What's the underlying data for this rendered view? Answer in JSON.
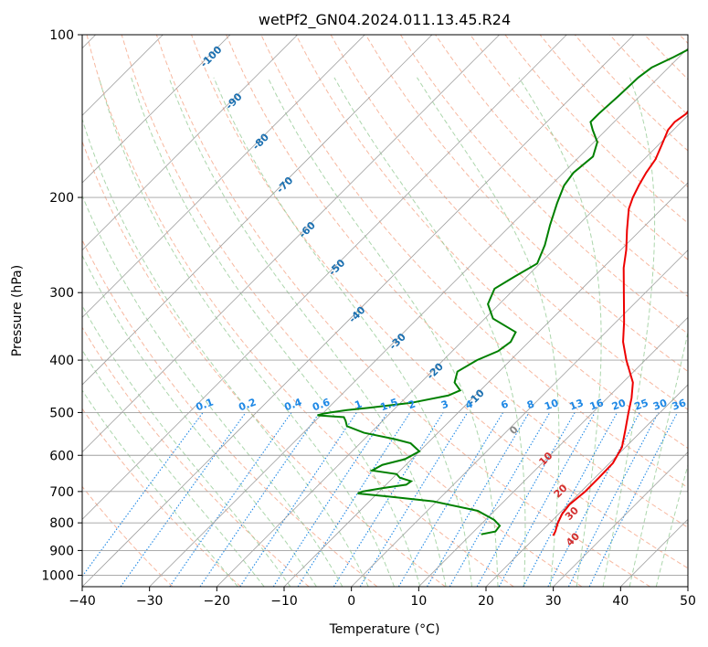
{
  "chart_data": {
    "type": "line",
    "title": "wetPf2_GN04.2024.011.13.45.R24",
    "xlabel": "Temperature (°C)",
    "ylabel": "Pressure (hPa)",
    "xlim": [
      -40,
      50
    ],
    "ylim": [
      1050,
      100
    ],
    "y_scale": "log",
    "x_ticks": [
      "−40",
      "−30",
      "−20",
      "−10",
      "0",
      "10",
      "20",
      "30",
      "40",
      "50"
    ],
    "y_ticks": [
      "100",
      "200",
      "300",
      "400",
      "500",
      "600",
      "700",
      "800",
      "900",
      "1000"
    ],
    "grid": true,
    "skew": "skew-T log-p",
    "series": [
      {
        "color": "#ee0000",
        "pressure": [
          845,
          830,
          800,
          770,
          740,
          700,
          660,
          620,
          580,
          540,
          500,
          470,
          440,
          400,
          370,
          340,
          300,
          270,
          250,
          230,
          210,
          200,
          190,
          180,
          170,
          160,
          150,
          145,
          140,
          130,
          120,
          110,
          100
        ],
        "values": [
          22.4,
          22.1,
          21.2,
          20.5,
          20.2,
          20.6,
          20.6,
          20.5,
          19.5,
          17.5,
          15.3,
          13.6,
          11.5,
          7.2,
          4.0,
          1.2,
          -3.2,
          -6.9,
          -9.2,
          -12.0,
          -14.9,
          -16.0,
          -16.9,
          -17.7,
          -18.3,
          -19.5,
          -20.8,
          -21.0,
          -20.5,
          -21.2,
          -22.7,
          -24.7,
          -26.3
        ]
      },
      {
        "color": "#008000",
        "pressure": [
          840,
          830,
          810,
          790,
          760,
          730,
          715,
          706,
          700,
          690,
          680,
          670,
          660,
          650,
          640,
          625,
          610,
          590,
          570,
          560,
          545,
          530,
          518,
          510,
          506,
          503,
          500,
          495,
          490,
          480,
          465,
          455,
          440,
          420,
          400,
          385,
          370,
          355,
          335,
          315,
          295,
          280,
          265,
          245,
          225,
          205,
          190,
          180,
          168,
          158,
          150,
          145,
          140,
          130,
          120,
          115,
          110,
          105,
          100
        ],
        "values": [
          11.5,
          13.2,
          13.0,
          11.3,
          7.5,
          -0.5,
          -8.0,
          -12.9,
          -12.5,
          -10.0,
          -7.0,
          -6.8,
          -9.0,
          -10.0,
          -14.2,
          -13.5,
          -11.0,
          -10.0,
          -12.5,
          -15.5,
          -21.0,
          -24.5,
          -25.5,
          -26.3,
          -30.5,
          -30.0,
          -29.0,
          -27.0,
          -24.0,
          -18.5,
          -14.0,
          -13.0,
          -15.0,
          -16.2,
          -15.0,
          -13.2,
          -12.7,
          -13.4,
          -18.8,
          -21.7,
          -23.0,
          -21.8,
          -20.4,
          -22.0,
          -24.2,
          -26.4,
          -28.0,
          -28.5,
          -28.0,
          -29.5,
          -32.0,
          -33.5,
          -33.5,
          -33.2,
          -33.0,
          -32.5,
          -30.8,
          -29.3,
          -28.0
        ]
      }
    ],
    "dry_adiabat_labels": [
      "-100",
      "-90",
      "-80",
      "-70",
      "-60",
      "-50",
      "-40",
      "-30",
      "-20",
      "-10"
    ],
    "moist_adiabat_labels": [
      "0",
      "10",
      "20",
      "30",
      "40"
    ],
    "mixing_ratio_labels": [
      "0.1",
      "0.2",
      "0.4",
      "0.6",
      "1",
      "1.5",
      "2",
      "3",
      "4",
      "6",
      "8",
      "10",
      "13",
      "16",
      "20",
      "25",
      "30",
      "36"
    ],
    "colors": {
      "temperature": "#ee0000",
      "dewpoint": "#008000",
      "isotherm": "#a0a0a0",
      "dry_adiabat": "#f4a080",
      "moist_adiabat": "#90c890",
      "mixing_ratio": "#1e88e5",
      "dry_adiabat_label": "#1a6fb0",
      "moist_adiabat_label": "#d32f2f",
      "zero_label": "#888888"
    }
  }
}
